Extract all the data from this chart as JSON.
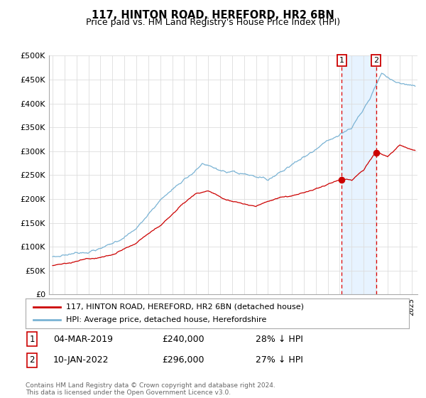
{
  "title": "117, HINTON ROAD, HEREFORD, HR2 6BN",
  "subtitle": "Price paid vs. HM Land Registry's House Price Index (HPI)",
  "ylabel_ticks": [
    "£0",
    "£50K",
    "£100K",
    "£150K",
    "£200K",
    "£250K",
    "£300K",
    "£350K",
    "£400K",
    "£450K",
    "£500K"
  ],
  "ytick_values": [
    0,
    50000,
    100000,
    150000,
    200000,
    250000,
    300000,
    350000,
    400000,
    450000,
    500000
  ],
  "ylim": [
    0,
    500000
  ],
  "xlim_start": 1994.7,
  "xlim_end": 2025.5,
  "hpi_color": "#7ab3d4",
  "price_color": "#cc0000",
  "marker1_date_x": 2019.17,
  "marker1_price": 240000,
  "marker1_label": "1",
  "marker1_date_str": "04-MAR-2019",
  "marker1_price_str": "£240,000",
  "marker1_pct": "28% ↓ HPI",
  "marker2_date_x": 2022.03,
  "marker2_price": 296000,
  "marker2_label": "2",
  "marker2_date_str": "10-JAN-2022",
  "marker2_price_str": "£296,000",
  "marker2_pct": "27% ↓ HPI",
  "legend_line1": "117, HINTON ROAD, HEREFORD, HR2 6BN (detached house)",
  "legend_line2": "HPI: Average price, detached house, Herefordshire",
  "footer": "Contains HM Land Registry data © Crown copyright and database right 2024.\nThis data is licensed under the Open Government Licence v3.0.",
  "background_color": "#ffffff",
  "grid_color": "#dddddd",
  "vline_color": "#dd0000",
  "shade_color": "#ddeeff",
  "vline_x1": 2019.17,
  "vline_x2": 2022.03
}
